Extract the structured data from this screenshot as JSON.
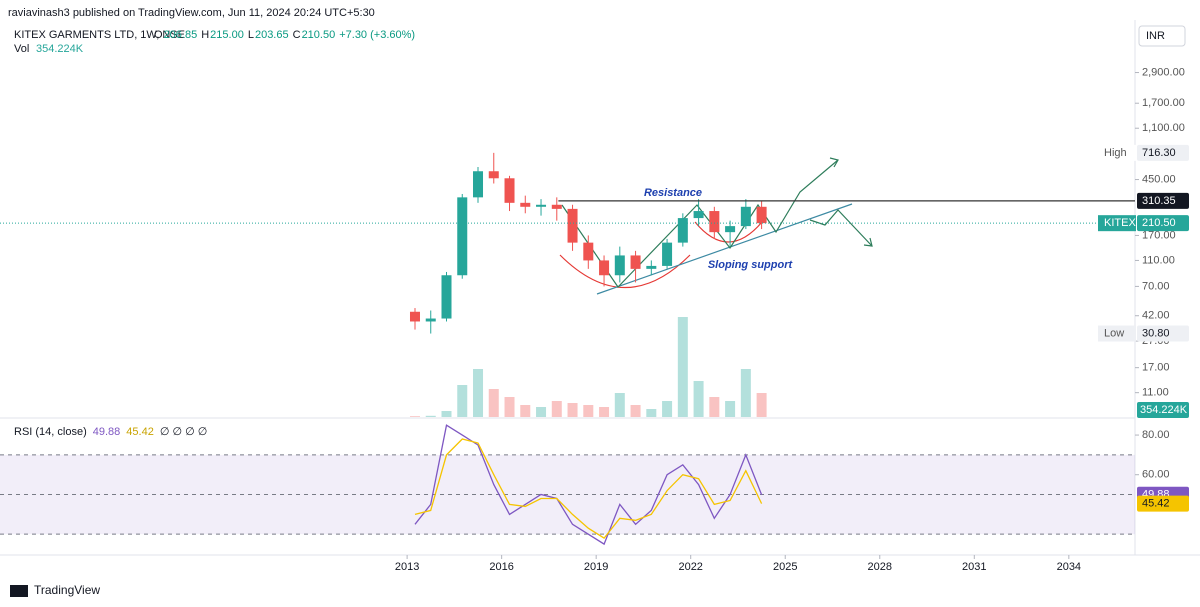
{
  "header": {
    "publisher": "raviavinash3 published on TradingView.com, Jun 11, 2024 20:24 UTC+5:30",
    "symbol": "KITEX GARMENTS LTD, 1W, NSE",
    "ohlc": [
      {
        "label": "O",
        "value": "206.85"
      },
      {
        "label": "H",
        "value": "215.00"
      },
      {
        "label": "L",
        "value": "203.65"
      },
      {
        "label": "C",
        "value": "210.50"
      }
    ],
    "change": "+7.30 (+3.60%)",
    "vol_label": "Vol",
    "vol_value": "354.224K",
    "currency": "INR"
  },
  "chart_data": {
    "type": "candlestick",
    "log_scale": true,
    "grid": false,
    "up_color": "#26a69a",
    "down_color": "#ef5350",
    "x": [
      2013.25,
      2013.75,
      2014.25,
      2014.75,
      2015.25,
      2015.75,
      2016.25,
      2016.75,
      2017.25,
      2017.75,
      2018.25,
      2018.75,
      2019.25,
      2019.75,
      2020.25,
      2020.75,
      2021.25,
      2021.75,
      2022.25,
      2022.75,
      2023.25,
      2023.75,
      2024.25
    ],
    "open": [
      45,
      38,
      40,
      85,
      330,
      520,
      460,
      300,
      280,
      290,
      270,
      150,
      110,
      85,
      120,
      95,
      100,
      150,
      230,
      260,
      180,
      200,
      280
    ],
    "high": [
      48,
      46,
      90,
      350,
      560,
      716.3,
      480,
      340,
      320,
      330,
      290,
      170,
      120,
      140,
      130,
      110,
      160,
      250,
      320,
      280,
      220,
      320,
      310
    ],
    "low": [
      33,
      30.8,
      38,
      80,
      300,
      420,
      260,
      250,
      240,
      220,
      130,
      95,
      70,
      75,
      75,
      85,
      95,
      140,
      200,
      160,
      140,
      190,
      190
    ],
    "close": [
      38,
      40,
      85,
      330,
      520,
      460,
      300,
      280,
      290,
      270,
      150,
      110,
      85,
      120,
      95,
      100,
      150,
      230,
      260,
      180,
      200,
      280,
      210.5
    ],
    "volume": [
      20000,
      30000,
      150000,
      800000,
      1200000,
      700000,
      500000,
      300000,
      250000,
      400000,
      350000,
      300000,
      250000,
      600000,
      300000,
      200000,
      400000,
      2500000,
      900000,
      500000,
      400000,
      1200000,
      600000
    ],
    "xlim": [
      2000.08,
      2036.1
    ],
    "xticks": [
      2013,
      2016,
      2019,
      2022,
      2025,
      2028,
      2031,
      2034
    ],
    "ylim": [
      6300,
      7.2
    ],
    "yticks": [
      {
        "value": 2900,
        "label": "2,900.00"
      },
      {
        "value": 1700,
        "label": "1,700.00"
      },
      {
        "value": 1100,
        "label": "1,100.00"
      },
      {
        "value": 450,
        "label": "450.00"
      },
      {
        "value": 170,
        "label": "170.00"
      },
      {
        "value": 110,
        "label": "110.00"
      },
      {
        "value": 70,
        "label": "70.00"
      },
      {
        "value": 42,
        "label": "42.00"
      },
      {
        "value": 27,
        "label": "27.00"
      },
      {
        "value": 17,
        "label": "17.00"
      },
      {
        "value": 11,
        "label": "11.00"
      }
    ],
    "high_badge": {
      "label": "High",
      "value": 716.3,
      "value_label": "716.30"
    },
    "low_badge": {
      "label": "Low",
      "value": 30.8,
      "value_label": "30.80"
    },
    "last_badge": {
      "label": "KITEX",
      "value": 210.5,
      "value_label": "210.50"
    },
    "resistance": {
      "label": "Resistance",
      "value": 310.35,
      "value_label": "310.35",
      "start": 2017.8
    },
    "support_label": "Sloping support",
    "rsi": {
      "title": "RSI (14, close)",
      "color": "#7e57c2",
      "ma_color": "#f5c400",
      "values": [
        35,
        45,
        85,
        80,
        75,
        55,
        40,
        45,
        50,
        48,
        35,
        30,
        25,
        45,
        35,
        42,
        60,
        65,
        55,
        38,
        50,
        70,
        49.88
      ],
      "ma_values": [
        40,
        42,
        70,
        78,
        76,
        60,
        45,
        44,
        48,
        48,
        40,
        33,
        28,
        38,
        37,
        40,
        52,
        60,
        58,
        45,
        47,
        62,
        45.42
      ],
      "value_label": "49.88",
      "ma_label": "45.42",
      "placeholders": "∅ ∅ ∅ ∅",
      "ylim": [
        19.5,
        87.6
      ],
      "yticks": [
        {
          "value": 80,
          "label": "80.00"
        },
        {
          "value": 60,
          "label": "60.00"
        }
      ],
      "levels": [
        70,
        50,
        30
      ]
    }
  },
  "footer": {
    "brand": "TradingView"
  }
}
